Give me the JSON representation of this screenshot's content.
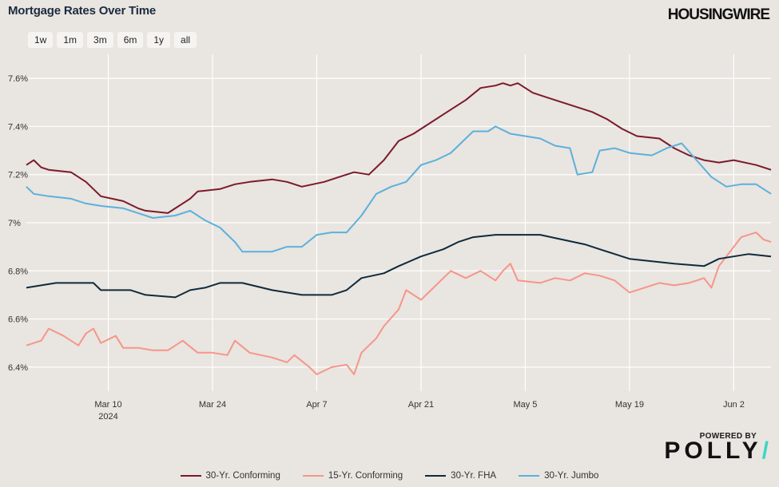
{
  "header": {
    "title": "Mortgage Rates Over Time",
    "brand": "HOUSINGWIRE"
  },
  "range_buttons": [
    "1w",
    "1m",
    "3m",
    "6m",
    "1y",
    "all"
  ],
  "footer": {
    "powered_by": "POWERED BY",
    "logo_text": "POLLY",
    "logo_mark": "/"
  },
  "chart_data": {
    "type": "line",
    "title": "Mortgage Rates Over Time",
    "x_domain": [
      "2024-02-28",
      "2024-06-07"
    ],
    "ylim": [
      6.3,
      7.7
    ],
    "y_ticks": [
      6.4,
      6.6,
      6.8,
      7.0,
      7.2,
      7.4,
      7.6
    ],
    "y_tick_labels": [
      "6.4%",
      "6.6%",
      "6.8%",
      "7%",
      "7.2%",
      "7.4%",
      "7.6%"
    ],
    "x_ticks": [
      {
        "date": "2024-03-10",
        "label": "Mar 10",
        "sublabel": "2024"
      },
      {
        "date": "2024-03-24",
        "label": "Mar 24",
        "sublabel": ""
      },
      {
        "date": "2024-04-07",
        "label": "Apr 7",
        "sublabel": ""
      },
      {
        "date": "2024-04-21",
        "label": "Apr 21",
        "sublabel": ""
      },
      {
        "date": "2024-05-05",
        "label": "May 5",
        "sublabel": ""
      },
      {
        "date": "2024-05-19",
        "label": "May 19",
        "sublabel": ""
      },
      {
        "date": "2024-06-02",
        "label": "Jun 2",
        "sublabel": ""
      }
    ],
    "grid": true,
    "legend_position": "bottom",
    "series": [
      {
        "name": "30-Yr. Conforming",
        "color": "#7b1a2a",
        "points": [
          [
            "2024-02-28",
            7.24
          ],
          [
            "2024-02-29",
            7.26
          ],
          [
            "2024-03-01",
            7.23
          ],
          [
            "2024-03-02",
            7.22
          ],
          [
            "2024-03-05",
            7.21
          ],
          [
            "2024-03-07",
            7.17
          ],
          [
            "2024-03-08",
            7.14
          ],
          [
            "2024-03-09",
            7.11
          ],
          [
            "2024-03-12",
            7.09
          ],
          [
            "2024-03-14",
            7.06
          ],
          [
            "2024-03-15",
            7.05
          ],
          [
            "2024-03-18",
            7.04
          ],
          [
            "2024-03-19",
            7.06
          ],
          [
            "2024-03-21",
            7.1
          ],
          [
            "2024-03-22",
            7.13
          ],
          [
            "2024-03-25",
            7.14
          ],
          [
            "2024-03-27",
            7.16
          ],
          [
            "2024-03-29",
            7.17
          ],
          [
            "2024-04-01",
            7.18
          ],
          [
            "2024-04-03",
            7.17
          ],
          [
            "2024-04-05",
            7.15
          ],
          [
            "2024-04-08",
            7.17
          ],
          [
            "2024-04-10",
            7.19
          ],
          [
            "2024-04-12",
            7.21
          ],
          [
            "2024-04-14",
            7.2
          ],
          [
            "2024-04-16",
            7.26
          ],
          [
            "2024-04-18",
            7.34
          ],
          [
            "2024-04-20",
            7.37
          ],
          [
            "2024-04-22",
            7.41
          ],
          [
            "2024-04-25",
            7.47
          ],
          [
            "2024-04-27",
            7.51
          ],
          [
            "2024-04-29",
            7.56
          ],
          [
            "2024-05-01",
            7.57
          ],
          [
            "2024-05-02",
            7.58
          ],
          [
            "2024-05-03",
            7.57
          ],
          [
            "2024-05-04",
            7.58
          ],
          [
            "2024-05-06",
            7.54
          ],
          [
            "2024-05-08",
            7.52
          ],
          [
            "2024-05-10",
            7.5
          ],
          [
            "2024-05-12",
            7.48
          ],
          [
            "2024-05-14",
            7.46
          ],
          [
            "2024-05-16",
            7.43
          ],
          [
            "2024-05-18",
            7.39
          ],
          [
            "2024-05-20",
            7.36
          ],
          [
            "2024-05-23",
            7.35
          ],
          [
            "2024-05-25",
            7.31
          ],
          [
            "2024-05-27",
            7.28
          ],
          [
            "2024-05-29",
            7.26
          ],
          [
            "2024-05-31",
            7.25
          ],
          [
            "2024-06-02",
            7.26
          ],
          [
            "2024-06-05",
            7.24
          ],
          [
            "2024-06-07",
            7.22
          ]
        ]
      },
      {
        "name": "15-Yr. Conforming",
        "color": "#f7958a",
        "points": [
          [
            "2024-02-28",
            6.49
          ],
          [
            "2024-03-01",
            6.51
          ],
          [
            "2024-03-02",
            6.56
          ],
          [
            "2024-03-04",
            6.53
          ],
          [
            "2024-03-06",
            6.49
          ],
          [
            "2024-03-07",
            6.54
          ],
          [
            "2024-03-08",
            6.56
          ],
          [
            "2024-03-09",
            6.5
          ],
          [
            "2024-03-11",
            6.53
          ],
          [
            "2024-03-12",
            6.48
          ],
          [
            "2024-03-14",
            6.48
          ],
          [
            "2024-03-16",
            6.47
          ],
          [
            "2024-03-18",
            6.47
          ],
          [
            "2024-03-20",
            6.51
          ],
          [
            "2024-03-22",
            6.46
          ],
          [
            "2024-03-24",
            6.46
          ],
          [
            "2024-03-26",
            6.45
          ],
          [
            "2024-03-27",
            6.51
          ],
          [
            "2024-03-29",
            6.46
          ],
          [
            "2024-04-01",
            6.44
          ],
          [
            "2024-04-03",
            6.42
          ],
          [
            "2024-04-04",
            6.45
          ],
          [
            "2024-04-06",
            6.4
          ],
          [
            "2024-04-07",
            6.37
          ],
          [
            "2024-04-09",
            6.4
          ],
          [
            "2024-04-11",
            6.41
          ],
          [
            "2024-04-12",
            6.37
          ],
          [
            "2024-04-13",
            6.46
          ],
          [
            "2024-04-15",
            6.52
          ],
          [
            "2024-04-16",
            6.57
          ],
          [
            "2024-04-18",
            6.64
          ],
          [
            "2024-04-19",
            6.72
          ],
          [
            "2024-04-21",
            6.68
          ],
          [
            "2024-04-23",
            6.74
          ],
          [
            "2024-04-25",
            6.8
          ],
          [
            "2024-04-27",
            6.77
          ],
          [
            "2024-04-29",
            6.8
          ],
          [
            "2024-05-01",
            6.76
          ],
          [
            "2024-05-02",
            6.8
          ],
          [
            "2024-05-03",
            6.83
          ],
          [
            "2024-05-04",
            6.76
          ],
          [
            "2024-05-07",
            6.75
          ],
          [
            "2024-05-09",
            6.77
          ],
          [
            "2024-05-11",
            6.76
          ],
          [
            "2024-05-13",
            6.79
          ],
          [
            "2024-05-15",
            6.78
          ],
          [
            "2024-05-17",
            6.76
          ],
          [
            "2024-05-19",
            6.71
          ],
          [
            "2024-05-21",
            6.73
          ],
          [
            "2024-05-23",
            6.75
          ],
          [
            "2024-05-25",
            6.74
          ],
          [
            "2024-05-27",
            6.75
          ],
          [
            "2024-05-29",
            6.77
          ],
          [
            "2024-05-30",
            6.73
          ],
          [
            "2024-05-31",
            6.82
          ],
          [
            "2024-06-02",
            6.9
          ],
          [
            "2024-06-03",
            6.94
          ],
          [
            "2024-06-05",
            6.96
          ],
          [
            "2024-06-06",
            6.93
          ],
          [
            "2024-06-07",
            6.92
          ]
        ]
      },
      {
        "name": "30-Yr. FHA",
        "color": "#0f2a3d",
        "points": [
          [
            "2024-02-28",
            6.73
          ],
          [
            "2024-03-01",
            6.74
          ],
          [
            "2024-03-03",
            6.75
          ],
          [
            "2024-03-08",
            6.75
          ],
          [
            "2024-03-09",
            6.72
          ],
          [
            "2024-03-13",
            6.72
          ],
          [
            "2024-03-15",
            6.7
          ],
          [
            "2024-03-19",
            6.69
          ],
          [
            "2024-03-21",
            6.72
          ],
          [
            "2024-03-23",
            6.73
          ],
          [
            "2024-03-25",
            6.75
          ],
          [
            "2024-03-28",
            6.75
          ],
          [
            "2024-04-01",
            6.72
          ],
          [
            "2024-04-03",
            6.71
          ],
          [
            "2024-04-05",
            6.7
          ],
          [
            "2024-04-09",
            6.7
          ],
          [
            "2024-04-11",
            6.72
          ],
          [
            "2024-04-13",
            6.77
          ],
          [
            "2024-04-16",
            6.79
          ],
          [
            "2024-04-18",
            6.82
          ],
          [
            "2024-04-21",
            6.86
          ],
          [
            "2024-04-24",
            6.89
          ],
          [
            "2024-04-26",
            6.92
          ],
          [
            "2024-04-28",
            6.94
          ],
          [
            "2024-05-01",
            6.95
          ],
          [
            "2024-05-04",
            6.95
          ],
          [
            "2024-05-07",
            6.95
          ],
          [
            "2024-05-10",
            6.93
          ],
          [
            "2024-05-13",
            6.91
          ],
          [
            "2024-05-15",
            6.89
          ],
          [
            "2024-05-17",
            6.87
          ],
          [
            "2024-05-19",
            6.85
          ],
          [
            "2024-05-22",
            6.84
          ],
          [
            "2024-05-25",
            6.83
          ],
          [
            "2024-05-29",
            6.82
          ],
          [
            "2024-05-31",
            6.85
          ],
          [
            "2024-06-02",
            6.86
          ],
          [
            "2024-06-04",
            6.87
          ],
          [
            "2024-06-07",
            6.86
          ]
        ]
      },
      {
        "name": "30-Yr. Jumbo",
        "color": "#5cb0dd",
        "points": [
          [
            "2024-02-28",
            7.15
          ],
          [
            "2024-02-29",
            7.12
          ],
          [
            "2024-03-02",
            7.11
          ],
          [
            "2024-03-05",
            7.1
          ],
          [
            "2024-03-07",
            7.08
          ],
          [
            "2024-03-09",
            7.07
          ],
          [
            "2024-03-12",
            7.06
          ],
          [
            "2024-03-14",
            7.04
          ],
          [
            "2024-03-16",
            7.02
          ],
          [
            "2024-03-19",
            7.03
          ],
          [
            "2024-03-21",
            7.05
          ],
          [
            "2024-03-23",
            7.01
          ],
          [
            "2024-03-25",
            6.98
          ],
          [
            "2024-03-27",
            6.92
          ],
          [
            "2024-03-28",
            6.88
          ],
          [
            "2024-03-30",
            6.88
          ],
          [
            "2024-04-01",
            6.88
          ],
          [
            "2024-04-03",
            6.9
          ],
          [
            "2024-04-05",
            6.9
          ],
          [
            "2024-04-07",
            6.95
          ],
          [
            "2024-04-09",
            6.96
          ],
          [
            "2024-04-11",
            6.96
          ],
          [
            "2024-04-13",
            7.03
          ],
          [
            "2024-04-15",
            7.12
          ],
          [
            "2024-04-17",
            7.15
          ],
          [
            "2024-04-19",
            7.17
          ],
          [
            "2024-04-21",
            7.24
          ],
          [
            "2024-04-23",
            7.26
          ],
          [
            "2024-04-25",
            7.29
          ],
          [
            "2024-04-26",
            7.32
          ],
          [
            "2024-04-28",
            7.38
          ],
          [
            "2024-04-30",
            7.38
          ],
          [
            "2024-05-01",
            7.4
          ],
          [
            "2024-05-03",
            7.37
          ],
          [
            "2024-05-05",
            7.36
          ],
          [
            "2024-05-07",
            7.35
          ],
          [
            "2024-05-09",
            7.32
          ],
          [
            "2024-05-11",
            7.31
          ],
          [
            "2024-05-12",
            7.2
          ],
          [
            "2024-05-14",
            7.21
          ],
          [
            "2024-05-15",
            7.3
          ],
          [
            "2024-05-17",
            7.31
          ],
          [
            "2024-05-19",
            7.29
          ],
          [
            "2024-05-22",
            7.28
          ],
          [
            "2024-05-24",
            7.31
          ],
          [
            "2024-05-26",
            7.33
          ],
          [
            "2024-05-28",
            7.26
          ],
          [
            "2024-05-30",
            7.19
          ],
          [
            "2024-06-01",
            7.15
          ],
          [
            "2024-06-03",
            7.16
          ],
          [
            "2024-06-05",
            7.16
          ],
          [
            "2024-06-07",
            7.12
          ]
        ]
      }
    ]
  }
}
